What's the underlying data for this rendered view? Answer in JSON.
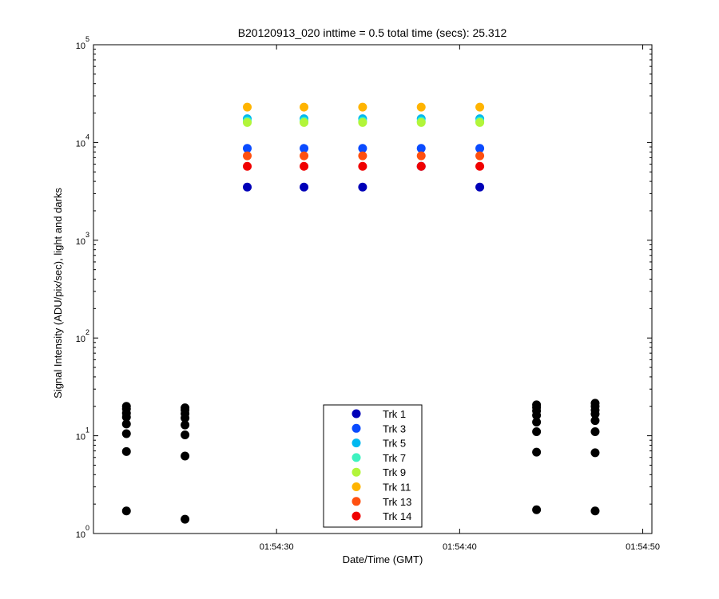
{
  "chart_data": {
    "type": "scatter",
    "title": "B20120913_020 inttime = 0.5 total time (secs): 25.312",
    "xlabel": "Date/Time (GMT)",
    "ylabel": "Signal Intensity (ADU/pix/sec), light and darks",
    "yscale": "log",
    "ylim": [
      1,
      100000
    ],
    "xlim": [
      "01:54:20",
      "01:54:50.5"
    ],
    "grid": false,
    "legend_position": "bottom-center",
    "x_ticks": [
      "01:54:30",
      "01:54:40",
      "01:54:50"
    ],
    "y_ticks": [
      {
        "value": 1,
        "base": "10",
        "exp": "0"
      },
      {
        "value": 10,
        "base": "10",
        "exp": "1"
      },
      {
        "value": 100,
        "base": "10",
        "exp": "2"
      },
      {
        "value": 1000,
        "base": "10",
        "exp": "3"
      },
      {
        "value": 10000,
        "base": "10",
        "exp": "4"
      },
      {
        "value": 100000,
        "base": "10",
        "exp": "5"
      }
    ],
    "light_times": [
      "01:54:28.4",
      "01:54:31.5",
      "01:54:34.7",
      "01:54:37.9",
      "01:54:41.1"
    ],
    "series": [
      {
        "name": "Trk 1",
        "color": "#0000b8",
        "values": [
          3500,
          3500,
          3500,
          5700,
          3500
        ]
      },
      {
        "name": "Trk 3",
        "color": "#0a4bff",
        "values": [
          8700,
          8700,
          8700,
          8700,
          8700
        ]
      },
      {
        "name": "Trk 5",
        "color": "#00b8f0",
        "values": [
          17500,
          17500,
          17500,
          17500,
          17500
        ]
      },
      {
        "name": "Trk 7",
        "color": "#3ef2c0",
        "values": [
          16500,
          16500,
          16500,
          16500,
          16500
        ]
      },
      {
        "name": "Trk 9",
        "color": "#b2f53a",
        "values": [
          16000,
          16000,
          16000,
          16000,
          16000
        ]
      },
      {
        "name": "Trk 11",
        "color": "#ffb400",
        "values": [
          23000,
          23000,
          23000,
          23000,
          23000
        ]
      },
      {
        "name": "Trk 13",
        "color": "#ff5010",
        "values": [
          7300,
          7300,
          7300,
          7300,
          7300
        ]
      },
      {
        "name": "Trk 14",
        "color": "#f00000",
        "values": [
          5700,
          5700,
          5700,
          5700,
          5700
        ]
      }
    ],
    "darks": {
      "color": "#000000",
      "times": [
        "01:54:21.8",
        "01:54:25.0",
        "01:54:44.2",
        "01:54:47.4"
      ],
      "values": [
        [
          1.7,
          6.9,
          10.5,
          13.2,
          15.5,
          17.0,
          18.8,
          20.0
        ],
        [
          1.4,
          6.2,
          10.2,
          12.9,
          15.2,
          16.8,
          18.3,
          19.3
        ],
        [
          1.75,
          6.8,
          11.0,
          13.8,
          16.2,
          18.0,
          19.5,
          20.7
        ],
        [
          1.7,
          6.7,
          11.0,
          14.3,
          16.7,
          18.3,
          20.0,
          21.5
        ]
      ]
    }
  }
}
